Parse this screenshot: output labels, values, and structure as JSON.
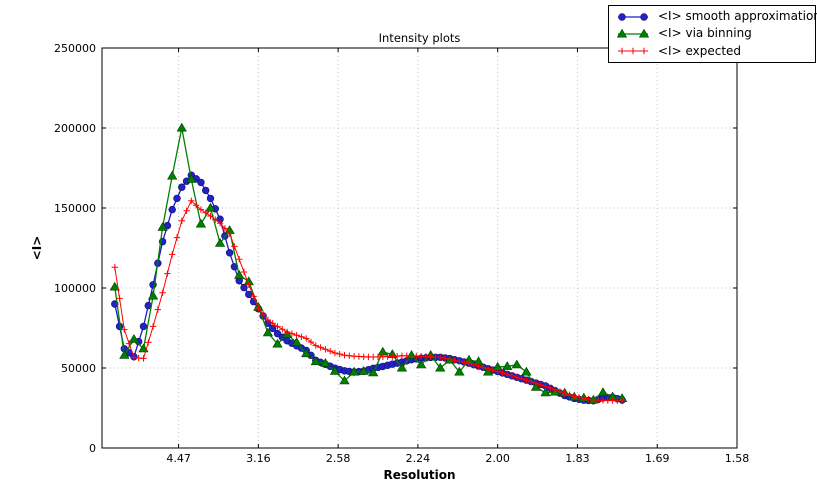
{
  "chart_data": {
    "type": "line",
    "title": "Intensity plots",
    "xlabel": "Resolution",
    "ylabel": "<I>",
    "x_axis_units": "inverse_d_squared",
    "xlim": [
      0.002,
      0.4
    ],
    "ylim": [
      0,
      250000
    ],
    "grid": true,
    "legend_position": "upper right (overlapping top-right of axes)",
    "x_ticks": [
      {
        "label": "4.47",
        "s": 0.05
      },
      {
        "label": "3.16",
        "s": 0.1
      },
      {
        "label": "2.58",
        "s": 0.15
      },
      {
        "label": "2.24",
        "s": 0.2
      },
      {
        "label": "2.00",
        "s": 0.25
      },
      {
        "label": "1.83",
        "s": 0.3
      },
      {
        "label": "1.69",
        "s": 0.35
      },
      {
        "label": "1.58",
        "s": 0.4
      }
    ],
    "y_ticks": [
      {
        "label": "0",
        "v": 0
      },
      {
        "label": "50000",
        "v": 50000
      },
      {
        "label": "100000",
        "v": 100000
      },
      {
        "label": "150000",
        "v": 150000
      },
      {
        "label": "200000",
        "v": 200000
      },
      {
        "label": "250000",
        "v": 250000
      }
    ],
    "x": [
      0.01,
      0.016,
      0.022,
      0.028,
      0.034,
      0.04,
      0.046,
      0.052,
      0.058,
      0.064,
      0.07,
      0.076,
      0.082,
      0.088,
      0.094,
      0.1,
      0.106,
      0.112,
      0.118,
      0.124,
      0.13,
      0.136,
      0.142,
      0.148,
      0.154,
      0.16,
      0.166,
      0.172,
      0.178,
      0.184,
      0.19,
      0.196,
      0.202,
      0.208,
      0.214,
      0.22,
      0.226,
      0.232,
      0.238,
      0.244,
      0.25,
      0.256,
      0.262,
      0.268,
      0.274,
      0.28,
      0.286,
      0.292,
      0.298,
      0.304,
      0.31,
      0.316,
      0.322,
      0.328
    ],
    "series": [
      {
        "name": "<I> smooth approximation",
        "color": "#1a1acd",
        "marker": "circle",
        "marker_fill": "#2222c8",
        "marker_edge": "#10106a",
        "line_width": 1.3,
        "markers_at_midpoints": true,
        "values": [
          90000,
          62000,
          57000,
          76000,
          102000,
          129000,
          149000,
          163000,
          170500,
          166000,
          156000,
          143000,
          122000,
          104500,
          96000,
          87000,
          78000,
          71500,
          67000,
          63900,
          61000,
          54800,
          52300,
          49900,
          48200,
          47500,
          48000,
          49800,
          51000,
          52400,
          53700,
          55200,
          56100,
          56600,
          56700,
          55900,
          54500,
          53000,
          51200,
          49600,
          47800,
          46000,
          44200,
          42400,
          40600,
          38800,
          35800,
          32800,
          31000,
          29900,
          29500,
          31300,
          31700,
          30000
        ]
      },
      {
        "name": "<I> via binning",
        "color": "#008000",
        "marker": "triangle-up",
        "marker_fill": "#008000",
        "marker_edge": "#003c00",
        "line_width": 1.3,
        "markers_at_midpoints": false,
        "values": [
          100600,
          58000,
          68000,
          62000,
          95000,
          138000,
          170000,
          200000,
          168000,
          140000,
          150000,
          128000,
          136000,
          108000,
          104000,
          88000,
          72000,
          65000,
          71000,
          66000,
          59000,
          54000,
          53000,
          48000,
          42000,
          47500,
          48000,
          47000,
          60000,
          58500,
          50000,
          58000,
          52000,
          58000,
          50000,
          55000,
          47500,
          55000,
          54000,
          47500,
          50600,
          51000,
          52000,
          47500,
          38000,
          34500,
          35000,
          34400,
          31900,
          31300,
          30000,
          34700,
          32000,
          31000
        ]
      },
      {
        "name": "<I> expected",
        "color": "#ff0000",
        "marker": "plus",
        "marker_fill": "#ff0000",
        "marker_edge": "#ff0000",
        "line_width": 1.0,
        "markers_at_midpoints": true,
        "values": [
          113000,
          74000,
          56500,
          56000,
          76000,
          97000,
          121000,
          142000,
          154500,
          149000,
          145000,
          140500,
          134000,
          118000,
          102000,
          87500,
          80000,
          76000,
          72500,
          70500,
          68500,
          64000,
          61700,
          59400,
          58000,
          57400,
          57000,
          56900,
          57000,
          57200,
          57600,
          57600,
          57400,
          57100,
          56600,
          55400,
          54200,
          52800,
          51200,
          49600,
          47900,
          46100,
          44200,
          42300,
          40400,
          38500,
          36300,
          34200,
          32400,
          31000,
          30000,
          29800,
          29600,
          29400
        ]
      }
    ],
    "style": {
      "grid_color": "#c3c3c3",
      "spine_color": "#000000",
      "background": "#ffffff"
    }
  }
}
